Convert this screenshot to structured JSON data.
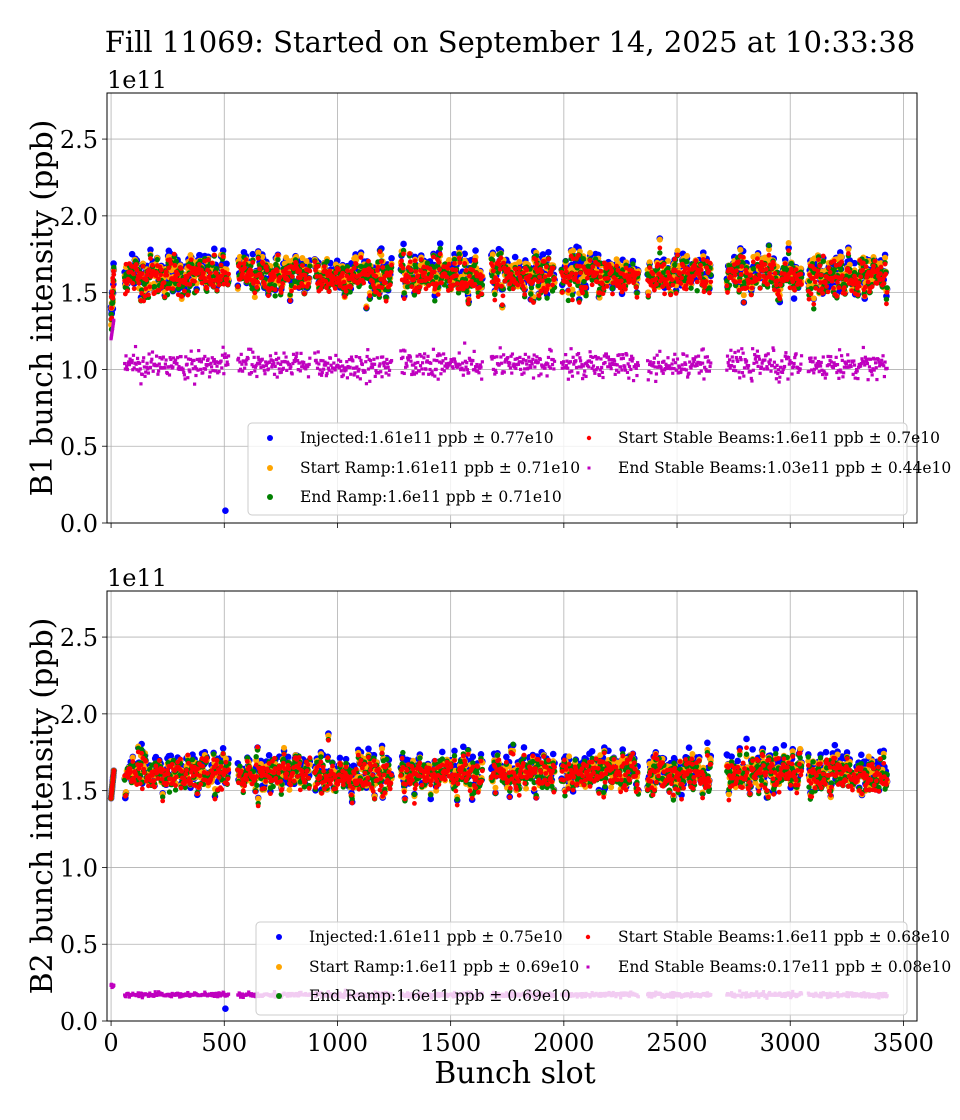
{
  "title": "Fill 11069: Started on September 14, 2025 at 10:33:38",
  "colors": {
    "Injected": "#0000ff",
    "Start Ramp": "#ffa500",
    "End Ramp": "#008000",
    "Start Stable Beams": "#ff0000",
    "End Stable Beams": "#bf00bf"
  },
  "chart_data": [
    {
      "type": "scatter",
      "title": "",
      "xlabel": "",
      "ylabel": "B1 bunch intensity (ppb)",
      "scale_label": "1e11",
      "xlim": [
        -18,
        3560
      ],
      "ylim": [
        0,
        2.8
      ],
      "grid": true,
      "legend_placement": "lower-right",
      "xticks": [
        "0",
        "500",
        "1000",
        "1500",
        "2000",
        "2500",
        "3000",
        "3500"
      ],
      "xtick_values": [
        0,
        500,
        1000,
        1500,
        2000,
        2500,
        3000,
        3500
      ],
      "yticks": [
        "0.0",
        "0.5",
        "1.0",
        "1.5",
        "2.0",
        "2.5"
      ],
      "ytick_values": [
        0,
        0.5,
        1.0,
        1.5,
        2.0,
        2.5
      ],
      "series": [
        {
          "name": "Injected",
          "legend": "Injected:1.61e11 ppb ± 0.77e10",
          "mean": 1.61,
          "std": 0.077,
          "outliers": [
            [
              505,
              0.08
            ]
          ]
        },
        {
          "name": "Start Ramp",
          "legend": "Start Ramp:1.61e11 ppb ± 0.71e10",
          "mean": 1.61,
          "std": 0.071
        },
        {
          "name": "End Ramp",
          "legend": "End Ramp:1.6e11 ppb ± 0.71e10",
          "mean": 1.6,
          "std": 0.071
        },
        {
          "name": "Start Stable Beams",
          "legend": "Start Stable Beams:1.6e11 ppb ± 0.7e10",
          "mean": 1.6,
          "std": 0.07
        },
        {
          "name": "End Stable Beams",
          "legend": "End Stable Beams:1.03e11 ppb ± 0.44e10",
          "mean": 1.03,
          "std": 0.044
        }
      ]
    },
    {
      "type": "scatter",
      "title": "",
      "xlabel": "Bunch slot",
      "ylabel": "B2 bunch intensity (ppb)",
      "scale_label": "1e11",
      "xlim": [
        -18,
        3560
      ],
      "ylim": [
        0,
        2.8
      ],
      "grid": true,
      "legend_placement": "lower-right",
      "xticks": [
        "0",
        "500",
        "1000",
        "1500",
        "2000",
        "2500",
        "3000",
        "3500"
      ],
      "xtick_values": [
        0,
        500,
        1000,
        1500,
        2000,
        2500,
        3000,
        3500
      ],
      "yticks": [
        "0.0",
        "0.5",
        "1.0",
        "1.5",
        "2.0",
        "2.5"
      ],
      "ytick_values": [
        0,
        0.5,
        1.0,
        1.5,
        2.0,
        2.5
      ],
      "series": [
        {
          "name": "Injected",
          "legend": "Injected:1.61e11 ppb ± 0.75e10",
          "mean": 1.61,
          "std": 0.075,
          "outliers": [
            [
              505,
              0.08
            ]
          ]
        },
        {
          "name": "Start Ramp",
          "legend": "Start Ramp:1.6e11 ppb ± 0.69e10",
          "mean": 1.6,
          "std": 0.069
        },
        {
          "name": "End Ramp",
          "legend": "End Ramp:1.6e11 ppb ± 0.69e10",
          "mean": 1.6,
          "std": 0.069
        },
        {
          "name": "Start Stable Beams",
          "legend": "Start Stable Beams:1.6e11 ppb ± 0.68e10",
          "mean": 1.6,
          "std": 0.068
        },
        {
          "name": "End Stable Beams",
          "legend": "End Stable Beams:0.17e11 ppb ± 0.08e10",
          "mean": 0.17,
          "std": 0.008
        }
      ]
    }
  ],
  "filled_slot_ranges": [
    [
      0,
      12
    ],
    [
      60,
      520
    ],
    [
      560,
      880
    ],
    [
      900,
      1240
    ],
    [
      1280,
      1640
    ],
    [
      1680,
      1960
    ],
    [
      1990,
      2330
    ],
    [
      2370,
      2650
    ],
    [
      2720,
      3050
    ],
    [
      3080,
      3430
    ]
  ]
}
